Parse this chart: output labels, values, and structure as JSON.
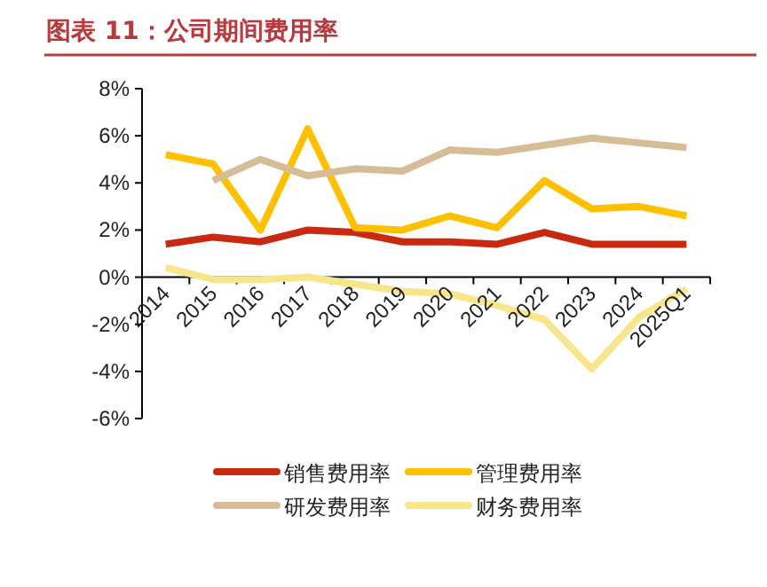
{
  "chart_data": {
    "type": "line",
    "title": "图表 11：公司期间费用率",
    "categories": [
      "2014",
      "2015",
      "2016",
      "2017",
      "2018",
      "2019",
      "2020",
      "2021",
      "2022",
      "2023",
      "2024",
      "2025Q1"
    ],
    "series": [
      {
        "name": "销售费用率",
        "color": "#c8290f",
        "values": [
          1.4,
          1.7,
          1.5,
          2.0,
          1.9,
          1.5,
          1.5,
          1.4,
          1.9,
          1.4,
          1.4,
          1.4
        ]
      },
      {
        "name": "管理费用率",
        "color": "#ffc000",
        "values": [
          5.2,
          4.8,
          2.0,
          6.3,
          2.1,
          2.0,
          2.6,
          2.1,
          4.1,
          2.9,
          3.0,
          2.6
        ]
      },
      {
        "name": "研发费用率",
        "color": "#d6bd98",
        "values": [
          null,
          4.1,
          5.0,
          4.3,
          4.6,
          4.5,
          5.4,
          5.3,
          5.6,
          5.9,
          5.7,
          5.5
        ]
      },
      {
        "name": "财务费用率",
        "color": "#f7e68c",
        "values": [
          0.4,
          -0.1,
          -0.1,
          0.0,
          -0.3,
          -0.6,
          -0.7,
          -1.2,
          -1.8,
          -3.9,
          -1.7,
          -0.5
        ]
      }
    ],
    "ylim": [
      -6,
      8
    ],
    "yticks": [
      {
        "value": -6,
        "label": "-6%"
      },
      {
        "value": -4,
        "label": "-4%"
      },
      {
        "value": -2,
        "label": "-2%"
      },
      {
        "value": 0,
        "label": "0%"
      },
      {
        "value": 2,
        "label": "2%"
      },
      {
        "value": 4,
        "label": "4%"
      },
      {
        "value": 6,
        "label": "6%"
      },
      {
        "value": 8,
        "label": "8%"
      }
    ],
    "grid": false,
    "legend": "bottom",
    "marker": "none",
    "line_style": "solid"
  }
}
